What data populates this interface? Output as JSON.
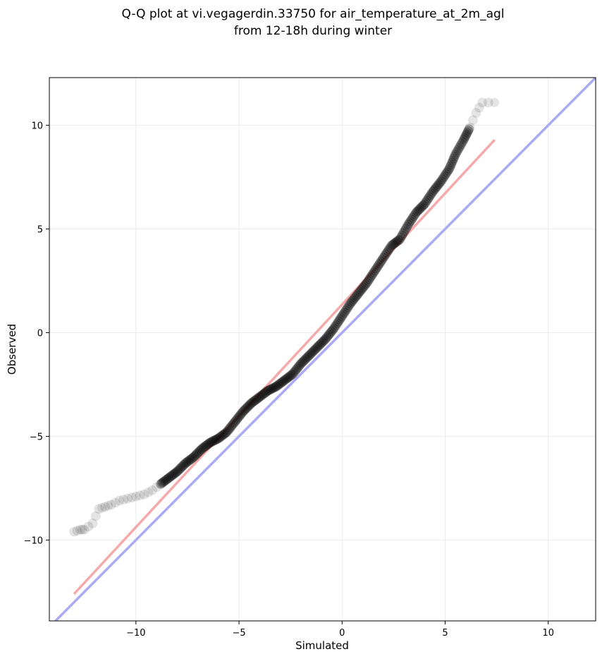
{
  "chart_data": {
    "type": "scatter",
    "title_lines": [
      "Q-Q plot at vi.vegagerdin.33750 for air_temperature_at_2m_agl",
      "from 12-18h during winter"
    ],
    "xlabel": "Simulated",
    "ylabel": "Observed",
    "xlim": [
      -14.2,
      12.3
    ],
    "ylim": [
      -13.9,
      12.3
    ],
    "xticks": [
      -10,
      -5,
      0,
      5,
      10
    ],
    "yticks": [
      -10,
      -5,
      0,
      5,
      10
    ],
    "xtick_labels": [
      "−10",
      "−5",
      "0",
      "5",
      "10"
    ],
    "ytick_labels": [
      "−10",
      "−5",
      "0",
      "5",
      "10"
    ],
    "grid": true,
    "reference_line": {
      "name": "1:1 line",
      "color": "#aaaaf5",
      "x": [
        -14.2,
        12.3
      ],
      "y": [
        -14.2,
        12.3
      ]
    },
    "fit_line": {
      "name": "fit",
      "color": "#f5aaaa",
      "x": [
        -13.0,
        7.4
      ],
      "y": [
        -12.6,
        9.3
      ]
    },
    "point_color": "#000000",
    "quantile_curve": [
      [
        -13.0,
        -9.6
      ],
      [
        -12.7,
        -9.5
      ],
      [
        -12.5,
        -9.5
      ],
      [
        -12.1,
        -9.2
      ],
      [
        -11.8,
        -8.5
      ],
      [
        -11.5,
        -8.4
      ],
      [
        -11.2,
        -8.3
      ],
      [
        -10.8,
        -8.1
      ],
      [
        -10.4,
        -8.0
      ],
      [
        -10.0,
        -7.9
      ],
      [
        -9.6,
        -7.8
      ],
      [
        -9.2,
        -7.6
      ],
      [
        -8.8,
        -7.3
      ],
      [
        -8.4,
        -7.0
      ],
      [
        -8.0,
        -6.7
      ],
      [
        -7.6,
        -6.3
      ],
      [
        -7.2,
        -6.0
      ],
      [
        -6.8,
        -5.6
      ],
      [
        -6.4,
        -5.3
      ],
      [
        -6.0,
        -5.1
      ],
      [
        -5.6,
        -4.8
      ],
      [
        -5.2,
        -4.3
      ],
      [
        -4.8,
        -3.8
      ],
      [
        -4.4,
        -3.4
      ],
      [
        -4.0,
        -3.1
      ],
      [
        -3.6,
        -2.8
      ],
      [
        -3.2,
        -2.6
      ],
      [
        -2.8,
        -2.3
      ],
      [
        -2.4,
        -2.0
      ],
      [
        -2.0,
        -1.5
      ],
      [
        -1.6,
        -1.1
      ],
      [
        -1.2,
        -0.7
      ],
      [
        -0.8,
        -0.3
      ],
      [
        -0.4,
        0.2
      ],
      [
        0.0,
        0.8
      ],
      [
        0.4,
        1.4
      ],
      [
        0.8,
        1.9
      ],
      [
        1.2,
        2.4
      ],
      [
        1.6,
        3.0
      ],
      [
        2.0,
        3.6
      ],
      [
        2.4,
        4.2
      ],
      [
        2.8,
        4.5
      ],
      [
        3.2,
        5.2
      ],
      [
        3.6,
        5.8
      ],
      [
        4.0,
        6.2
      ],
      [
        4.4,
        6.8
      ],
      [
        4.8,
        7.3
      ],
      [
        5.2,
        7.9
      ],
      [
        5.5,
        8.6
      ],
      [
        5.9,
        9.3
      ],
      [
        6.2,
        9.9
      ],
      [
        6.5,
        10.6
      ],
      [
        6.8,
        11.1
      ],
      [
        7.4,
        11.1
      ]
    ]
  }
}
